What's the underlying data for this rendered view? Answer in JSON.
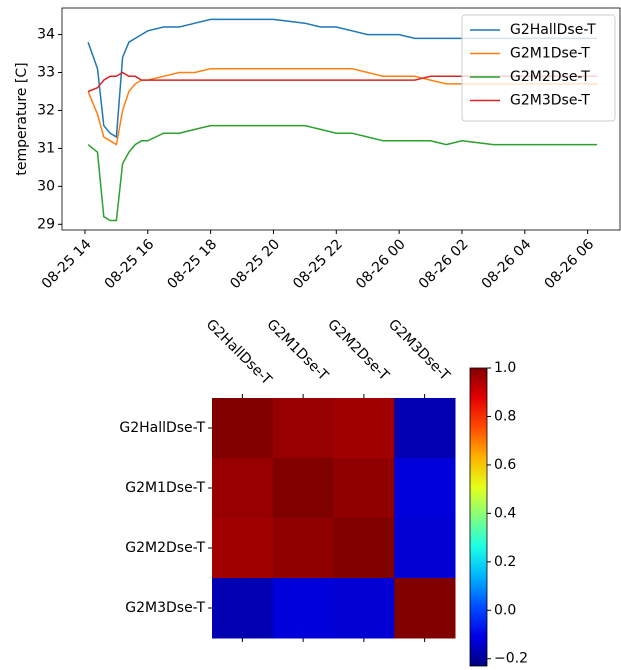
{
  "chart_data": [
    {
      "type": "line",
      "ylabel": "temperature [C]",
      "x": [
        14.1,
        14.4,
        14.6,
        14.8,
        15.0,
        15.2,
        15.4,
        15.6,
        15.8,
        16.0,
        16.5,
        17.0,
        17.5,
        18.0,
        18.5,
        19.0,
        20.0,
        21.0,
        21.5,
        22.0,
        22.5,
        23.0,
        23.5,
        24.0,
        24.5,
        25.0,
        25.5,
        26.0,
        27.0,
        28.0,
        29.0,
        30.0,
        30.3
      ],
      "series": [
        {
          "name": "G2HallDse-T",
          "color": "#1f77b4",
          "values": [
            33.8,
            33.1,
            31.6,
            31.4,
            31.3,
            33.4,
            33.8,
            33.9,
            34.0,
            34.1,
            34.2,
            34.2,
            34.3,
            34.4,
            34.4,
            34.4,
            34.4,
            34.3,
            34.2,
            34.2,
            34.1,
            34.0,
            34.0,
            34.0,
            33.9,
            33.9,
            33.9,
            33.9,
            33.9,
            33.9,
            33.9,
            33.9,
            33.9
          ]
        },
        {
          "name": "G2M1Dse-T",
          "color": "#ff7f0e",
          "values": [
            32.5,
            31.9,
            31.3,
            31.2,
            31.1,
            32.0,
            32.5,
            32.7,
            32.8,
            32.8,
            32.9,
            33.0,
            33.0,
            33.1,
            33.1,
            33.1,
            33.1,
            33.1,
            33.1,
            33.1,
            33.1,
            33.0,
            32.9,
            32.9,
            32.9,
            32.8,
            32.7,
            32.7,
            32.7,
            32.7,
            32.7,
            32.7,
            32.7
          ]
        },
        {
          "name": "G2M2Dse-T",
          "color": "#2ca02c",
          "values": [
            31.1,
            30.9,
            29.2,
            29.1,
            29.1,
            30.6,
            30.9,
            31.1,
            31.2,
            31.2,
            31.4,
            31.4,
            31.5,
            31.6,
            31.6,
            31.6,
            31.6,
            31.6,
            31.5,
            31.4,
            31.4,
            31.3,
            31.2,
            31.2,
            31.2,
            31.2,
            31.1,
            31.2,
            31.1,
            31.1,
            31.1,
            31.1,
            31.1
          ]
        },
        {
          "name": "G2M3Dse-T",
          "color": "#d62728",
          "values": [
            32.5,
            32.6,
            32.8,
            32.9,
            32.9,
            33.0,
            32.9,
            32.9,
            32.8,
            32.8,
            32.8,
            32.8,
            32.8,
            32.8,
            32.8,
            32.8,
            32.8,
            32.8,
            32.8,
            32.8,
            32.8,
            32.8,
            32.8,
            32.8,
            32.8,
            32.9,
            32.9,
            32.9,
            32.9,
            32.9,
            32.9,
            32.9,
            32.9
          ]
        }
      ],
      "xlim": [
        13.27,
        31.03
      ],
      "xticks": [
        {
          "value": 14,
          "label": "08-25 14"
        },
        {
          "value": 16,
          "label": "08-25 16"
        },
        {
          "value": 18,
          "label": "08-25 18"
        },
        {
          "value": 20,
          "label": "08-25 20"
        },
        {
          "value": 22,
          "label": "08-25 22"
        },
        {
          "value": 24,
          "label": "08-26 00"
        },
        {
          "value": 26,
          "label": "08-26 02"
        },
        {
          "value": 28,
          "label": "08-26 04"
        },
        {
          "value": 30,
          "label": "08-26 06"
        }
      ],
      "ylim": [
        28.85,
        34.7
      ],
      "yticks": [
        29,
        30,
        31,
        32,
        33,
        34
      ],
      "legend": "upper right"
    },
    {
      "type": "heatmap",
      "categories": [
        "G2HallDse-T",
        "G2M1Dse-T",
        "G2M2Dse-T",
        "G2M3Dse-T"
      ],
      "values": [
        [
          1.0,
          0.97,
          0.96,
          -0.17
        ],
        [
          0.97,
          1.0,
          0.98,
          -0.12
        ],
        [
          0.96,
          0.98,
          1.0,
          -0.13
        ],
        [
          -0.17,
          -0.12,
          -0.13,
          1.0
        ]
      ],
      "colormap": "jet",
      "vlim": [
        -0.23,
        1.0
      ],
      "cticks": [
        {
          "value": -0.2,
          "label": "−0.2"
        },
        {
          "value": 0,
          "label": "0.0"
        },
        0.2,
        0.4,
        0.6,
        0.8,
        {
          "value": 1,
          "label": "1.0"
        }
      ]
    }
  ]
}
